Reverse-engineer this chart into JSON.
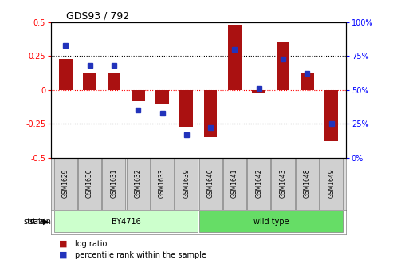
{
  "title": "GDS93 / 792",
  "samples": [
    "GSM1629",
    "GSM1630",
    "GSM1631",
    "GSM1632",
    "GSM1633",
    "GSM1639",
    "GSM1640",
    "GSM1641",
    "GSM1642",
    "GSM1643",
    "GSM1648",
    "GSM1649"
  ],
  "log_ratio": [
    0.23,
    0.12,
    0.13,
    -0.08,
    -0.1,
    -0.27,
    -0.35,
    0.48,
    -0.02,
    0.35,
    0.12,
    -0.38
  ],
  "percentile": [
    83,
    68,
    68,
    35,
    33,
    17,
    22,
    80,
    51,
    73,
    62,
    25
  ],
  "strain_groups": [
    {
      "label": "BY4716",
      "start": 0,
      "end": 5,
      "color": "#ccffcc"
    },
    {
      "label": "wild type",
      "start": 6,
      "end": 11,
      "color": "#66dd66"
    }
  ],
  "bar_color": "#aa1111",
  "dot_color": "#2233bb",
  "ylim_left": [
    -0.5,
    0.5
  ],
  "ylim_right": [
    0,
    100
  ],
  "yticks_left": [
    -0.5,
    -0.25,
    0,
    0.25,
    0.5
  ],
  "yticks_right": [
    0,
    25,
    50,
    75,
    100
  ],
  "background_color": "#ffffff",
  "strain_label": "strain"
}
